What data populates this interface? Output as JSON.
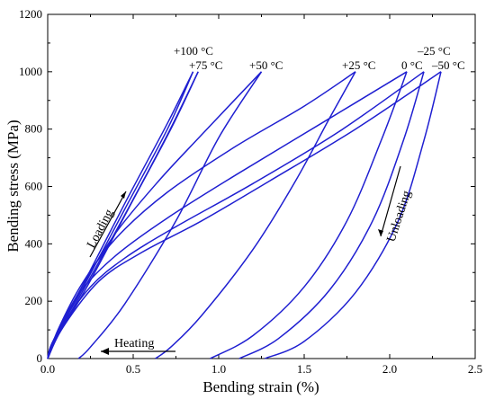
{
  "chart_data": {
    "type": "line",
    "xlabel": "Bending strain (%)",
    "ylabel": "Bending stress (MPa)",
    "xlim": [
      0,
      2.5
    ],
    "ylim": [
      0,
      1200
    ],
    "xticks": [
      "0.0",
      "0.5",
      "1.0",
      "1.5",
      "2.0",
      "2.5"
    ],
    "yticks": [
      "0",
      "200",
      "400",
      "600",
      "800",
      "1000",
      "1200"
    ],
    "grid": false,
    "legend": "none",
    "color": "#1f1fd1",
    "series": [
      {
        "name": "+100 °C",
        "loading": [
          [
            0,
            0
          ],
          [
            0.03,
            60
          ],
          [
            0.2,
            240
          ],
          [
            0.45,
            520
          ],
          [
            0.7,
            800
          ],
          [
            0.85,
            1000
          ]
        ],
        "unloading": [
          [
            0.85,
            1000
          ],
          [
            0.7,
            820
          ],
          [
            0.45,
            540
          ],
          [
            0.2,
            250
          ],
          [
            0.03,
            55
          ],
          [
            0,
            0
          ]
        ]
      },
      {
        "name": "+75 °C",
        "loading": [
          [
            0,
            0
          ],
          [
            0.04,
            60
          ],
          [
            0.2,
            230
          ],
          [
            0.45,
            500
          ],
          [
            0.7,
            780
          ],
          [
            0.88,
            1000
          ]
        ],
        "unloading": [
          [
            0.88,
            1000
          ],
          [
            0.72,
            800
          ],
          [
            0.47,
            520
          ],
          [
            0.22,
            240
          ],
          [
            0.03,
            50
          ],
          [
            0,
            0
          ]
        ]
      },
      {
        "name": "+50 °C",
        "loading": [
          [
            0,
            0
          ],
          [
            0.05,
            80
          ],
          [
            0.2,
            250
          ],
          [
            0.4,
            440
          ],
          [
            0.65,
            620
          ],
          [
            0.9,
            780
          ],
          [
            1.25,
            1000
          ]
        ],
        "unloading": [
          [
            1.25,
            1000
          ],
          [
            1.0,
            770
          ],
          [
            0.75,
            480
          ],
          [
            0.45,
            190
          ],
          [
            0.25,
            40
          ],
          [
            0.18,
            0
          ]
        ]
      },
      {
        "name": "+25 °C",
        "loading": [
          [
            0,
            0
          ],
          [
            0.06,
            100
          ],
          [
            0.2,
            260
          ],
          [
            0.4,
            420
          ],
          [
            0.7,
            580
          ],
          [
            1.1,
            740
          ],
          [
            1.5,
            880
          ],
          [
            1.8,
            1000
          ]
        ],
        "unloading": [
          [
            1.8,
            1000
          ],
          [
            1.65,
            840
          ],
          [
            1.45,
            620
          ],
          [
            1.2,
            380
          ],
          [
            0.9,
            150
          ],
          [
            0.72,
            40
          ],
          [
            0.63,
            0
          ]
        ]
      },
      {
        "name": "0 °C",
        "loading": [
          [
            0,
            0
          ],
          [
            0.07,
            110
          ],
          [
            0.2,
            240
          ],
          [
            0.4,
            360
          ],
          [
            0.7,
            490
          ],
          [
            1.1,
            640
          ],
          [
            1.6,
            820
          ],
          [
            2.1,
            1000
          ]
        ],
        "unloading": [
          [
            2.1,
            1000
          ],
          [
            1.95,
            760
          ],
          [
            1.75,
            480
          ],
          [
            1.5,
            250
          ],
          [
            1.2,
            80
          ],
          [
            0.95,
            0
          ]
        ]
      },
      {
        "name": "-25 °C",
        "loading": [
          [
            0,
            0
          ],
          [
            0.08,
            110
          ],
          [
            0.25,
            250
          ],
          [
            0.45,
            350
          ],
          [
            0.75,
            460
          ],
          [
            1.2,
            610
          ],
          [
            1.7,
            790
          ],
          [
            2.2,
            1000
          ]
        ],
        "unloading": [
          [
            2.2,
            1000
          ],
          [
            2.08,
            760
          ],
          [
            1.9,
            480
          ],
          [
            1.65,
            240
          ],
          [
            1.35,
            70
          ],
          [
            1.12,
            0
          ]
        ]
      },
      {
        "name": "-50 °C",
        "loading": [
          [
            0,
            0
          ],
          [
            0.09,
            110
          ],
          [
            0.3,
            270
          ],
          [
            0.55,
            370
          ],
          [
            0.9,
            480
          ],
          [
            1.3,
            620
          ],
          [
            1.8,
            800
          ],
          [
            2.3,
            1000
          ]
        ],
        "unloading": [
          [
            2.3,
            1000
          ],
          [
            2.2,
            760
          ],
          [
            2.05,
            480
          ],
          [
            1.8,
            230
          ],
          [
            1.5,
            60
          ],
          [
            1.27,
            0
          ]
        ]
      }
    ],
    "curve_labels": [
      "+100 °C",
      "+75 °C",
      "+50 °C",
      "+25 °C",
      "0 °C",
      "–25 °C",
      "–50 °C"
    ],
    "annotations": {
      "loading": "Loading",
      "unloading": "Unloading",
      "heating": "Heating"
    }
  }
}
